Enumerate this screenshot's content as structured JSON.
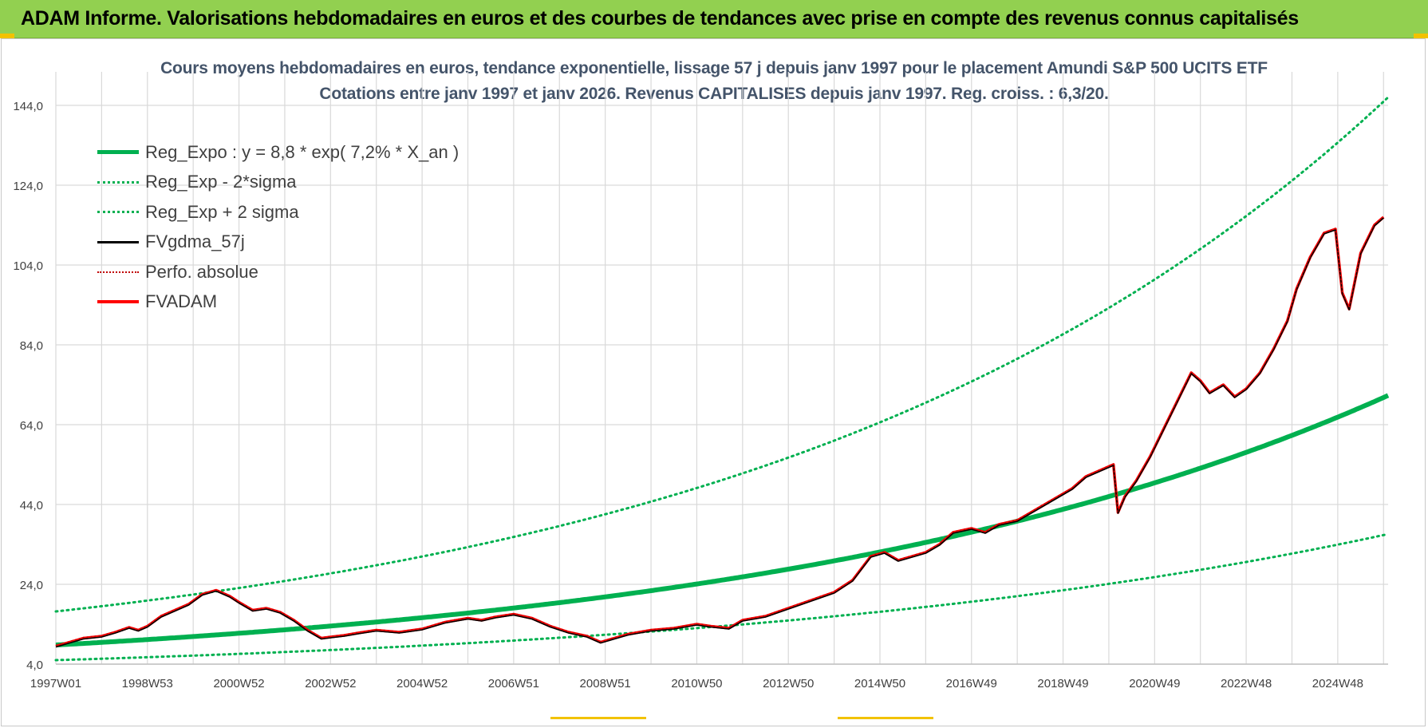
{
  "banner": {
    "text": "ADAM Informe. Valorisations hebdomadaires en euros et des courbes de tendances avec prise en compte des revenus connus capitalisés"
  },
  "colors": {
    "banner": "#92d050",
    "regression": "#00b050",
    "fvgdma": "#000000",
    "fvadam": "#ff0000",
    "title": "#44546a",
    "grid": "#d9d9d9"
  },
  "chart_data": {
    "type": "line",
    "title": "Cours moyens hebdomadaires en euros, tendance exponentielle, lissage 57 j depuis janv 1997 pour le placement Amundi S&P 500 UCITS ETF",
    "subtitle": "Cotations entre janv 1997 et janv 2026. Revenus CAPITALISES depuis janv 1997. Reg. croiss. : 6,3/20.",
    "xlabel": "",
    "ylabel": "",
    "ylim": [
      4,
      150
    ],
    "yticks": [
      "4,0",
      "24,0",
      "44,0",
      "64,0",
      "84,0",
      "104,0",
      "124,0",
      "144,0"
    ],
    "ytick_values": [
      4,
      24,
      44,
      64,
      84,
      104,
      124,
      144
    ],
    "xticks": [
      "1997W01",
      "1998W53",
      "2000W52",
      "2002W52",
      "2004W52",
      "2006W51",
      "2008W51",
      "2010W50",
      "2012W50",
      "2014W50",
      "2016W49",
      "2018W49",
      "2020W49",
      "2022W48",
      "2024W48"
    ],
    "xtick_years": [
      1997.0,
      1999.0,
      2001.0,
      2003.0,
      2005.0,
      2007.0,
      2009.0,
      2011.0,
      2013.0,
      2015.0,
      2017.0,
      2019.0,
      2021.0,
      2023.0,
      2025.0
    ],
    "xlim": [
      1997.0,
      2026.1
    ],
    "grid": true,
    "legend_position": "top-left",
    "series": [
      {
        "name": "Reg_Expo : y = 8,8 * exp( 7,2% *  X_an )",
        "style": "solid-thick",
        "color": "#00b050",
        "formula": {
          "a": 8.8,
          "rate": 0.0719,
          "x0": 1997.0
        }
      },
      {
        "name": "Reg_Exp - 2*sigma",
        "style": "dotted",
        "color": "#00b050",
        "formula": {
          "a": 5.0,
          "rate": 0.0684,
          "x0": 1997.0
        }
      },
      {
        "name": "Reg_Exp + 2 sigma",
        "style": "dotted",
        "color": "#00b050",
        "formula": {
          "a": 17.2,
          "rate": 0.0735,
          "x0": 1997.0
        }
      },
      {
        "name": "FVgdma_57j",
        "style": "solid",
        "color": "#000000",
        "follows": "FVADAM"
      },
      {
        "name": "Perfo. absolue",
        "style": "dotted",
        "color": "#c00000",
        "follows": "FVADAM"
      },
      {
        "name": "FVADAM",
        "style": "solid-thick",
        "color": "#ff0000",
        "x": [
          1997.0,
          1997.3,
          1997.6,
          1998.0,
          1998.3,
          1998.6,
          1998.8,
          1999.0,
          1999.3,
          1999.6,
          1999.9,
          2000.2,
          2000.5,
          2000.8,
          2001.0,
          2001.3,
          2001.6,
          2001.9,
          2002.2,
          2002.5,
          2002.8,
          2003.0,
          2003.3,
          2003.6,
          2004.0,
          2004.5,
          2005.0,
          2005.5,
          2006.0,
          2006.3,
          2006.6,
          2007.0,
          2007.4,
          2007.8,
          2008.2,
          2008.6,
          2008.9,
          2009.2,
          2009.5,
          2010.0,
          2010.5,
          2011.0,
          2011.3,
          2011.7,
          2012.0,
          2012.5,
          2013.0,
          2013.5,
          2014.0,
          2014.4,
          2014.8,
          2015.1,
          2015.4,
          2015.7,
          2016.0,
          2016.3,
          2016.6,
          2017.0,
          2017.3,
          2017.6,
          2018.0,
          2018.3,
          2018.6,
          2018.9,
          2019.2,
          2019.5,
          2019.9,
          2020.1,
          2020.2,
          2020.35,
          2020.6,
          2020.9,
          2021.2,
          2021.5,
          2021.8,
          2022.0,
          2022.2,
          2022.5,
          2022.75,
          2023.0,
          2023.3,
          2023.6,
          2023.9,
          2024.1,
          2024.4,
          2024.7,
          2024.95,
          2025.1,
          2025.25,
          2025.5,
          2025.8,
          2026.0
        ],
        "values": [
          8.5,
          9.5,
          10.5,
          11.0,
          12.0,
          13.2,
          12.5,
          13.5,
          16.0,
          17.5,
          19.0,
          21.5,
          22.5,
          21.0,
          19.5,
          17.5,
          18.0,
          17.0,
          15.0,
          12.5,
          10.5,
          10.8,
          11.2,
          11.8,
          12.5,
          12.0,
          12.8,
          14.5,
          15.5,
          15.0,
          15.8,
          16.5,
          15.5,
          13.5,
          12.0,
          11.0,
          9.5,
          10.5,
          11.5,
          12.5,
          13.0,
          14.0,
          13.5,
          13.0,
          15.0,
          16.0,
          18.0,
          20.0,
          22.0,
          25.0,
          31.0,
          32.0,
          30.0,
          31.0,
          32.0,
          34.0,
          37.0,
          38.0,
          37.0,
          39.0,
          40.0,
          42.0,
          44.0,
          46.0,
          48.0,
          51.0,
          53.0,
          54.0,
          42.0,
          46.0,
          50.0,
          56.0,
          63.0,
          70.0,
          77.0,
          75.0,
          72.0,
          74.0,
          71.0,
          73.0,
          77.0,
          83.0,
          90.0,
          98.0,
          106.0,
          112.0,
          113.0,
          97.0,
          93.0,
          107.0,
          114.0,
          116.0
        ]
      }
    ]
  }
}
